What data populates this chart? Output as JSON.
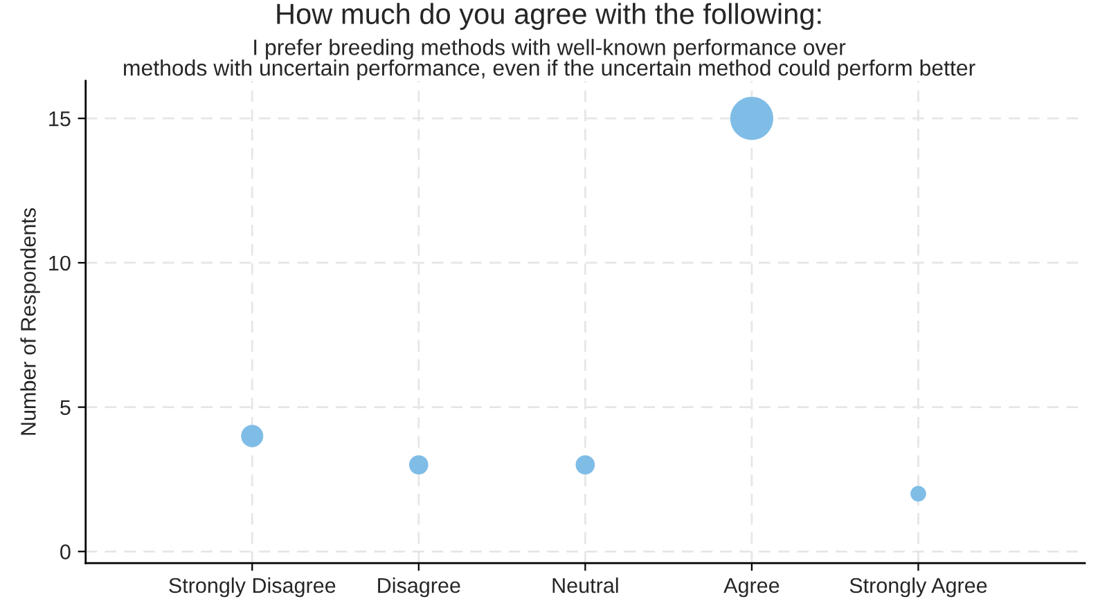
{
  "chart_data": {
    "type": "bubble",
    "title": "How much do you agree with the following:",
    "subtitle": "I prefer breeding methods with well-known performance over\nmethods with uncertain performance, even if the uncertain method could perform better",
    "ylabel": "Number of Respondents",
    "categories": [
      "Strongly Disagree",
      "Disagree",
      "Neutral",
      "Agree",
      "Strongly Agree"
    ],
    "values": [
      4,
      3,
      3,
      15,
      2
    ],
    "sizes": [
      0.267,
      0.2,
      0.2,
      1,
      0.133
    ],
    "color": "#7fbde7",
    "ylim": [
      -0.4,
      16.3
    ],
    "yticks": [
      0,
      5,
      10,
      15
    ],
    "grid": true
  }
}
